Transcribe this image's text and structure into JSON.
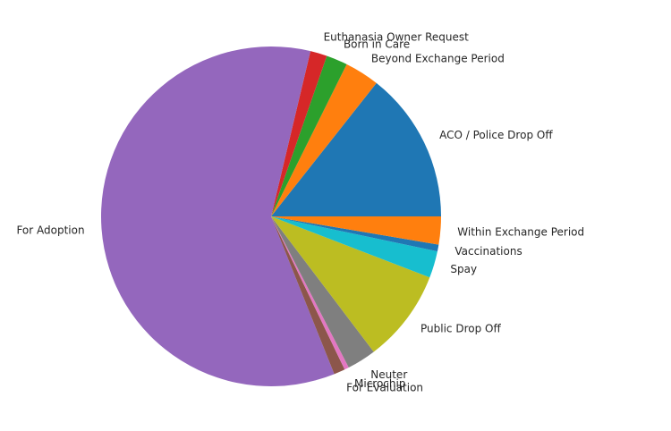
{
  "chart_data": {
    "type": "pie",
    "title": "",
    "start_angle_deg": 0,
    "direction": "counterclockwise",
    "slices": [
      {
        "label": "ACO / Police Drop Off",
        "value": 13.5,
        "color": "#1f77b4"
      },
      {
        "label": "Beyond Exchange Period",
        "value": 3.1,
        "color": "#ff7f0e"
      },
      {
        "label": "Born in Care",
        "value": 1.9,
        "color": "#2ca02c"
      },
      {
        "label": "Euthanasia Owner Request",
        "value": 1.5,
        "color": "#d62728"
      },
      {
        "label": "For Adoption",
        "value": 56.2,
        "color": "#9467bd"
      },
      {
        "label": "For Evaluation",
        "value": 1.0,
        "color": "#8c564b"
      },
      {
        "label": "Microchip",
        "value": 0.4,
        "color": "#e377c2"
      },
      {
        "label": "Neuter",
        "value": 2.6,
        "color": "#7f7f7f"
      },
      {
        "label": "Public Drop Off",
        "value": 8.3,
        "color": "#bcbd22"
      },
      {
        "label": "Spay",
        "value": 2.4,
        "color": "#17becf"
      },
      {
        "label": "Vaccinations",
        "value": 0.6,
        "color": "#1f77b4"
      },
      {
        "label": "Within Exchange Period",
        "value": 2.5,
        "color": "#ff7f0e"
      }
    ]
  }
}
